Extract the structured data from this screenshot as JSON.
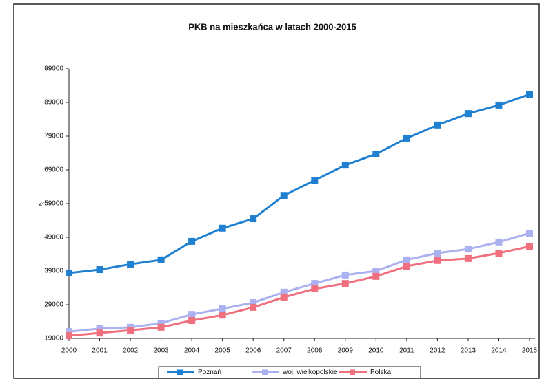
{
  "chart_data": {
    "type": "line",
    "title": "PKB na mieszkańca w latach 2000-2015",
    "y_label": "zł",
    "categories": [
      "2000",
      "2001",
      "2002",
      "2003",
      "2004",
      "2005",
      "2006",
      "2007",
      "2008",
      "2009",
      "2010",
      "2011",
      "2012",
      "2013",
      "2014",
      "2015"
    ],
    "series": [
      {
        "name": "Poznań",
        "color": "#1f7fd0",
        "values": [
          38400,
          39400,
          41000,
          42300,
          47800,
          51700,
          54500,
          61400,
          65900,
          70400,
          73700,
          78400,
          82300,
          85700,
          88200,
          91400
        ]
      },
      {
        "name": "woj. wielkopolskie",
        "color": "#aab0f0",
        "values": [
          21000,
          21900,
          22300,
          23500,
          26100,
          27800,
          29600,
          32700,
          35300,
          37800,
          39000,
          42300,
          44300,
          45500,
          47600,
          50200
        ]
      },
      {
        "name": "Polska",
        "color": "#f07080",
        "values": [
          19800,
          20600,
          21400,
          22300,
          24300,
          25900,
          28200,
          31200,
          33700,
          35300,
          37400,
          40400,
          42100,
          42700,
          44300,
          46300
        ]
      }
    ],
    "ylim": [
      19000,
      99000
    ],
    "yticks": [
      19000,
      29000,
      39000,
      49000,
      59000,
      69000,
      79000,
      89000,
      99000
    ],
    "grid": false,
    "legend": "bottom"
  }
}
